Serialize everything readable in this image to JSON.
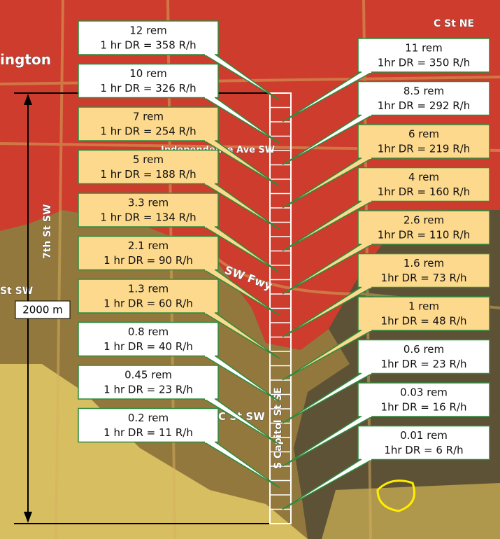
{
  "map_labels": [
    "ington",
    "C St NE",
    "Independence Ave SW",
    "7th St SW",
    "SW Fwy",
    "C St SW",
    "S Capitol St SE",
    "St SW"
  ],
  "scale": {
    "label": "2000 m"
  },
  "left_callouts": [
    {
      "dose": "12 rem",
      "rate": "1 hr DR = 358 R/h",
      "fill": "#ffffff"
    },
    {
      "dose": "10 rem",
      "rate": "1 hr DR = 326 R/h",
      "fill": "#ffffff"
    },
    {
      "dose": "7 rem",
      "rate": "1 hr DR = 254 R/h",
      "fill": "#fcd98c"
    },
    {
      "dose": "5 rem",
      "rate": "1 hr DR = 188 R/h",
      "fill": "#fcd98c"
    },
    {
      "dose": "3.3 rem",
      "rate": "1 hr DR = 134 R/h",
      "fill": "#fcd98c"
    },
    {
      "dose": "2.1 rem",
      "rate": "1 hr DR = 90 R/h",
      "fill": "#fcd98c"
    },
    {
      "dose": "1.3 rem",
      "rate": "1 hr DR = 60 R/h",
      "fill": "#fcd98c"
    },
    {
      "dose": "0.8 rem",
      "rate": "1 hr DR = 40 R/h",
      "fill": "#ffffff"
    },
    {
      "dose": "0.45 rem",
      "rate": "1 hr DR = 23 R/h",
      "fill": "#ffffff"
    },
    {
      "dose": "0.2 rem",
      "rate": "1 hr DR = 11 R/h",
      "fill": "#ffffff"
    }
  ],
  "right_callouts": [
    {
      "dose": "11 rem",
      "rate": "1hr DR = 350 R/h",
      "fill": "#ffffff"
    },
    {
      "dose": "8.5 rem",
      "rate": "1hr DR = 292 R/h",
      "fill": "#ffffff"
    },
    {
      "dose": "6 rem",
      "rate": "1hr DR = 219 R/h",
      "fill": "#fcd98c"
    },
    {
      "dose": "4 rem",
      "rate": "1hr DR = 160 R/h",
      "fill": "#fcd98c"
    },
    {
      "dose": "2.6 rem",
      "rate": "1hr DR = 110 R/h",
      "fill": "#fcd98c"
    },
    {
      "dose": "1.6 rem",
      "rate": "1hr DR = 73 R/h",
      "fill": "#fcd98c"
    },
    {
      "dose": "1 rem",
      "rate": "1hr DR = 48 R/h",
      "fill": "#fcd98c"
    },
    {
      "dose": "0.6 rem",
      "rate": "1hr DR = 23 R/h",
      "fill": "#ffffff"
    },
    {
      "dose": "0.03 rem",
      "rate": "1hr DR = 16 R/h",
      "fill": "#ffffff"
    },
    {
      "dose": "0.01 rem",
      "rate": "1hr DR = 6 R/h",
      "fill": "#ffffff"
    }
  ]
}
